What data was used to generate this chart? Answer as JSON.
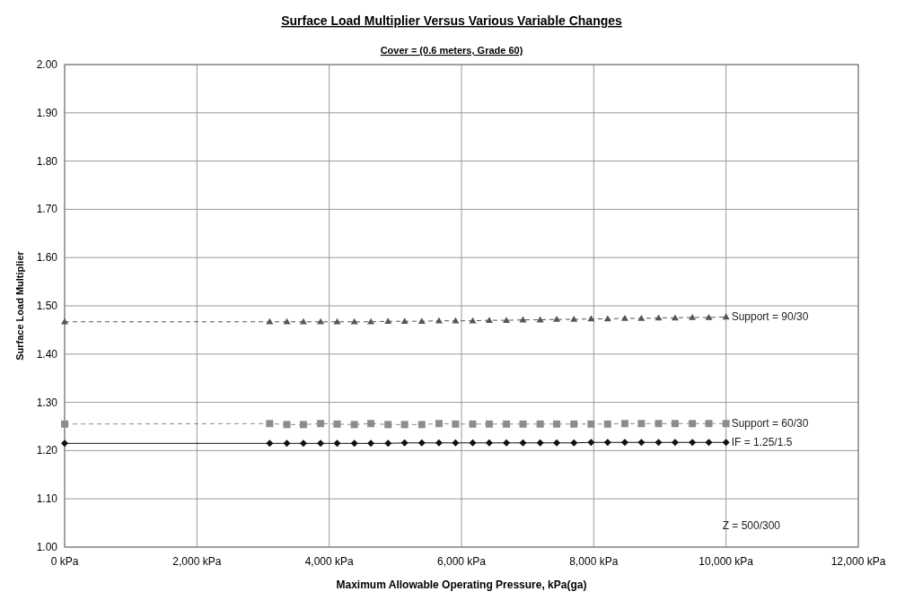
{
  "chart_data": {
    "type": "line",
    "title": "Surface Load Multiplier Versus Various Variable Changes",
    "subtitle": "Cover = (0.6 meters, Grade 60)",
    "xlabel": "Maximum Allowable Operating Pressure,  kPa(ga)",
    "ylabel": "Surface Load Multiplier",
    "x": [
      0,
      3100,
      3360,
      3610,
      3870,
      4120,
      4380,
      4630,
      4890,
      5140,
      5400,
      5660,
      5910,
      6170,
      6420,
      6680,
      6930,
      7190,
      7440,
      7700,
      7960,
      8210,
      8470,
      8720,
      8980,
      9230,
      9490,
      9740,
      10000
    ],
    "series": [
      {
        "name": "Support = 90/30",
        "color": "#555555",
        "marker": "triangle",
        "line_style": "dashed",
        "values": [
          1.467,
          1.467,
          1.467,
          1.467,
          1.467,
          1.467,
          1.467,
          1.467,
          1.468,
          1.468,
          1.468,
          1.469,
          1.469,
          1.469,
          1.47,
          1.47,
          1.471,
          1.471,
          1.472,
          1.472,
          1.473,
          1.473,
          1.474,
          1.474,
          1.475,
          1.475,
          1.476,
          1.476,
          1.477
        ]
      },
      {
        "name": "Support = 60/30",
        "color": "#8c8c8c",
        "marker": "square",
        "line_style": "dashed",
        "values": [
          1.255,
          1.256,
          1.254,
          1.254,
          1.256,
          1.255,
          1.254,
          1.256,
          1.254,
          1.254,
          1.254,
          1.256,
          1.255,
          1.255,
          1.255,
          1.255,
          1.255,
          1.255,
          1.255,
          1.255,
          1.255,
          1.255,
          1.256,
          1.256,
          1.256,
          1.256,
          1.256,
          1.256,
          1.256
        ]
      },
      {
        "name": "IF = 1.25/1.5",
        "color": "#111111",
        "marker": "diamond",
        "line_style": "solid",
        "values": [
          1.215,
          1.215,
          1.215,
          1.215,
          1.215,
          1.215,
          1.215,
          1.215,
          1.215,
          1.216,
          1.216,
          1.216,
          1.216,
          1.216,
          1.216,
          1.216,
          1.216,
          1.216,
          1.216,
          1.216,
          1.217,
          1.217,
          1.217,
          1.217,
          1.217,
          1.217,
          1.217,
          1.217,
          1.217
        ]
      }
    ],
    "annotations": [
      "Z = 500/300"
    ],
    "xlim": [
      0,
      12000
    ],
    "xticks": [
      {
        "value": 0,
        "label": "0 kPa"
      },
      {
        "value": 2000,
        "label": "2,000 kPa"
      },
      {
        "value": 4000,
        "label": "4,000 kPa"
      },
      {
        "value": 6000,
        "label": "6,000 kPa"
      },
      {
        "value": 8000,
        "label": "8,000 kPa"
      },
      {
        "value": 10000,
        "label": "10,000 kPa"
      },
      {
        "value": 12000,
        "label": "12,000 kPa"
      }
    ],
    "ylim": [
      1.0,
      2.0
    ],
    "yticks": [
      {
        "value": 1.0,
        "label": "1.00"
      },
      {
        "value": 1.1,
        "label": "1.10"
      },
      {
        "value": 1.2,
        "label": "1.20"
      },
      {
        "value": 1.3,
        "label": "1.30"
      },
      {
        "value": 1.4,
        "label": "1.40"
      },
      {
        "value": 1.5,
        "label": "1.50"
      },
      {
        "value": 1.6,
        "label": "1.60"
      },
      {
        "value": 1.7,
        "label": "1.70"
      },
      {
        "value": 1.8,
        "label": "1.80"
      },
      {
        "value": 1.9,
        "label": "1.90"
      },
      {
        "value": 2.0,
        "label": "2.00"
      }
    ],
    "grid": true
  }
}
